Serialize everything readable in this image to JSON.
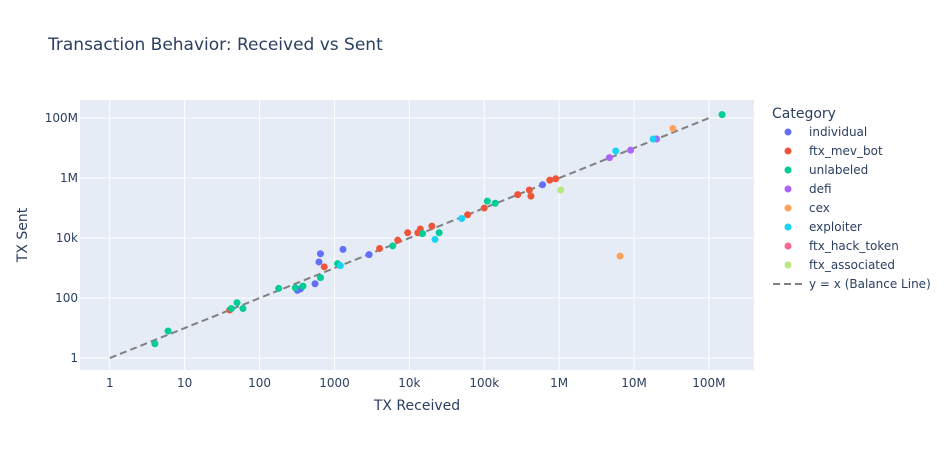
{
  "chart_data": {
    "type": "scatter",
    "title": "Transaction Behavior: Received vs Sent",
    "xlabel": "TX Received",
    "ylabel": "TX Sent",
    "xscale": "log",
    "yscale": "log",
    "xlim": [
      0.4,
      400000000
    ],
    "ylim": [
      0.4,
      400000000
    ],
    "x_ticks": [
      {
        "value": 1,
        "label": "1"
      },
      {
        "value": 10,
        "label": "10"
      },
      {
        "value": 100,
        "label": "100"
      },
      {
        "value": 1000,
        "label": "1000"
      },
      {
        "value": 10000,
        "label": "10k"
      },
      {
        "value": 100000,
        "label": "100k"
      },
      {
        "value": 1000000,
        "label": "1M"
      },
      {
        "value": 10000000,
        "label": "10M"
      },
      {
        "value": 100000000,
        "label": "100M"
      }
    ],
    "y_ticks": [
      {
        "value": 1,
        "label": "1"
      },
      {
        "value": 100,
        "label": "100"
      },
      {
        "value": 10000,
        "label": "10k"
      },
      {
        "value": 1000000,
        "label": "1M"
      },
      {
        "value": 100000000,
        "label": "100M"
      }
    ],
    "grid": true,
    "legend_title": "Category",
    "legend_position": "right",
    "series": [
      {
        "name": "individual",
        "color": "#636efa",
        "points": [
          [
            320,
            180
          ],
          [
            350,
            200
          ],
          [
            550,
            300
          ],
          [
            620,
            1600
          ],
          [
            650,
            3000
          ],
          [
            1300,
            4200
          ],
          [
            2900,
            2800
          ],
          [
            600000,
            600000
          ]
        ]
      },
      {
        "name": "ftx_mev_bot",
        "color": "#ef553b",
        "points": [
          [
            40,
            40
          ],
          [
            730,
            1100
          ],
          [
            4000,
            4500
          ],
          [
            7000,
            8500
          ],
          [
            9500,
            15000
          ],
          [
            13000,
            15000
          ],
          [
            14000,
            20000
          ],
          [
            20000,
            25000
          ],
          [
            60000,
            60000
          ],
          [
            100000,
            100000
          ],
          [
            280000,
            280000
          ],
          [
            400000,
            400000
          ],
          [
            420000,
            250000
          ],
          [
            750000,
            850000
          ],
          [
            900000,
            950000
          ]
        ]
      },
      {
        "name": "unlabeled",
        "color": "#00cc96",
        "points": [
          [
            4,
            3
          ],
          [
            6,
            8
          ],
          [
            42,
            45
          ],
          [
            50,
            70
          ],
          [
            60,
            45
          ],
          [
            180,
            210
          ],
          [
            300,
            220
          ],
          [
            380,
            250
          ],
          [
            650,
            480
          ],
          [
            1100,
            1400
          ],
          [
            6000,
            5500
          ],
          [
            15000,
            14000
          ],
          [
            25000,
            15000
          ],
          [
            110000,
            170000
          ],
          [
            140000,
            145000
          ],
          [
            150000000,
            130000000
          ]
        ]
      },
      {
        "name": "defi",
        "color": "#ab63fa",
        "points": [
          [
            4700000,
            4800000
          ],
          [
            9000000,
            8500000
          ],
          [
            20000000,
            20000000
          ]
        ]
      },
      {
        "name": "cex",
        "color": "#ffa15a",
        "points": [
          [
            6500000,
            2500
          ],
          [
            33000000,
            45000000
          ]
        ]
      },
      {
        "name": "exploiter",
        "color": "#19d3f3",
        "points": [
          [
            1200,
            1200
          ],
          [
            22000,
            9000
          ],
          [
            50000,
            45000
          ],
          [
            5700000,
            8000000
          ],
          [
            18000000,
            20000000
          ]
        ]
      },
      {
        "name": "ftx_hack_token",
        "color": "#ff6692",
        "points": []
      },
      {
        "name": "ftx_associated",
        "color": "#b6e880",
        "points": [
          [
            1050000,
            400000
          ]
        ]
      }
    ],
    "reference_line": {
      "name": "y = x (Balance Line)",
      "color": "#808080",
      "style": "dashed",
      "x": [
        1,
        100000000
      ],
      "y": [
        1,
        100000000
      ]
    }
  }
}
